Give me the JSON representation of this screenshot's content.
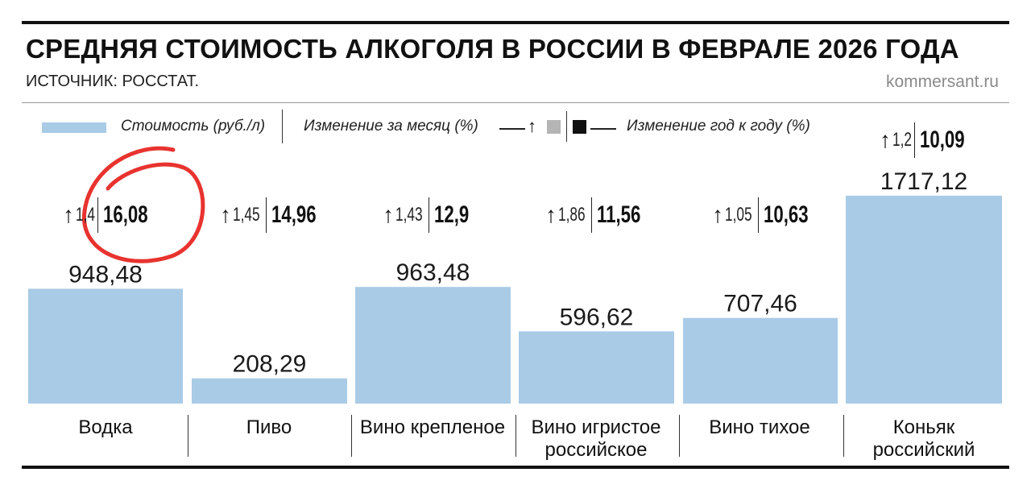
{
  "title": "СРЕДНЯЯ СТОИМОСТЬ АЛКОГОЛЯ В РОССИИ В ФЕВРАЛЕ 2026 ГОДА",
  "source": "ИСТОЧНИК: РОССТАТ.",
  "site": "kommersant.ru",
  "legend": {
    "cost": "Стоимость (руб./л)",
    "month_change": "Изменение за месяц (%)",
    "year_change": "Изменение год к году (%)",
    "arrow_icon": "up-arrow",
    "month_color": "#b5b5b5",
    "year_color": "#111111"
  },
  "colors": {
    "bar": "#a9cbe6",
    "annotation_circle": "#e8332f"
  },
  "chart_data": {
    "type": "bar",
    "title": "СРЕДНЯЯ СТОИМОСТЬ АЛКОГОЛЯ В РОССИИ В ФЕВРАЛЕ 2026 ГОДА",
    "categories": [
      "Водка",
      "Пиво",
      "Вино крепленое",
      "Вино игристое российское",
      "Вино тихое",
      "Коньяк российский"
    ],
    "category_lines": [
      [
        "Водка"
      ],
      [
        "Пиво"
      ],
      [
        "Вино крепленое"
      ],
      [
        "Вино игристое",
        "российское"
      ],
      [
        "Вино тихое"
      ],
      [
        "Коньяк",
        "российский"
      ]
    ],
    "series": [
      {
        "name": "Стоимость (руб./л)",
        "values": [
          948.48,
          208.29,
          963.48,
          596.62,
          707.46,
          1717.12
        ]
      },
      {
        "name": "Изменение за месяц (%)",
        "values": [
          1.4,
          1.45,
          1.43,
          1.86,
          1.05,
          1.2
        ]
      },
      {
        "name": "Изменение год к году (%)",
        "values": [
          16.08,
          14.96,
          12.9,
          11.56,
          10.63,
          10.09
        ]
      }
    ],
    "value_labels": [
      "948,48",
      "208,29",
      "963,48",
      "596,62",
      "707,46",
      "1717,12"
    ],
    "month_labels": [
      "1,4",
      "1,45",
      "1,43",
      "1,86",
      "1,05",
      "1,2"
    ],
    "year_labels": [
      "16,08",
      "14,96",
      "12,9",
      "11,56",
      "10,63",
      "10,09"
    ],
    "ylim": [
      0,
      1750
    ],
    "grid": false,
    "legend_position": "top"
  }
}
